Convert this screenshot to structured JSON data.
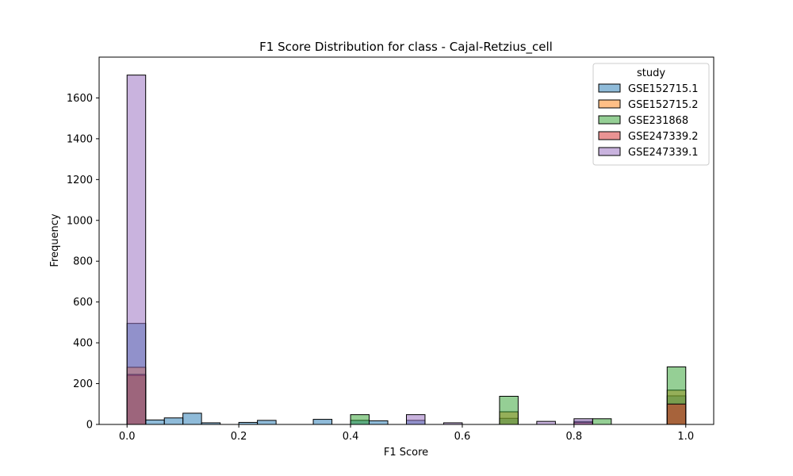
{
  "chart_data": {
    "type": "histogram",
    "title": "F1 Score Distribution for class - Cajal-Retzius_cell",
    "xlabel": "F1 Score",
    "ylabel": "Frequency",
    "xlim": [
      -0.05,
      1.05
    ],
    "ylim": [
      0,
      1800
    ],
    "x_ticks": [
      0.0,
      0.2,
      0.4,
      0.6,
      0.8,
      1.0
    ],
    "x_tick_labels": [
      "0.0",
      "0.2",
      "0.4",
      "0.6",
      "0.8",
      "1.0"
    ],
    "y_ticks": [
      0,
      200,
      400,
      600,
      800,
      1000,
      1200,
      1400,
      1600
    ],
    "y_tick_labels": [
      "0",
      "200",
      "400",
      "600",
      "800",
      "1000",
      "1200",
      "1400",
      "1600"
    ],
    "grid": false,
    "bins": 30,
    "bin_width": 0.0333,
    "legend": {
      "title": "study",
      "placement": "top-right"
    },
    "series": [
      {
        "name": "GSE152715.1",
        "color": "#1f77b4",
        "bins": [
          {
            "x0": 0.0,
            "x1": 0.0333,
            "count": 495
          },
          {
            "x0": 0.0333,
            "x1": 0.0667,
            "count": 22
          },
          {
            "x0": 0.0667,
            "x1": 0.1,
            "count": 32
          },
          {
            "x0": 0.1,
            "x1": 0.1333,
            "count": 55
          },
          {
            "x0": 0.1333,
            "x1": 0.1667,
            "count": 8
          },
          {
            "x0": 0.2,
            "x1": 0.2333,
            "count": 10
          },
          {
            "x0": 0.2333,
            "x1": 0.2667,
            "count": 20
          },
          {
            "x0": 0.3333,
            "x1": 0.3667,
            "count": 25
          },
          {
            "x0": 0.4,
            "x1": 0.4333,
            "count": 20
          },
          {
            "x0": 0.4333,
            "x1": 0.4667,
            "count": 18
          },
          {
            "x0": 0.5,
            "x1": 0.5333,
            "count": 20
          },
          {
            "x0": 0.6667,
            "x1": 0.7,
            "count": 30
          },
          {
            "x0": 0.8,
            "x1": 0.8333,
            "count": 15
          },
          {
            "x0": 0.9667,
            "x1": 1.0,
            "count": 140
          }
        ]
      },
      {
        "name": "GSE152715.2",
        "color": "#ff7f0e",
        "bins": [
          {
            "x0": 0.0,
            "x1": 0.0333,
            "count": 280
          },
          {
            "x0": 0.6667,
            "x1": 0.7,
            "count": 62
          },
          {
            "x0": 0.9667,
            "x1": 1.0,
            "count": 168
          }
        ]
      },
      {
        "name": "GSE231868",
        "color": "#2ca02c",
        "bins": [
          {
            "x0": 0.0,
            "x1": 0.0333,
            "count": 240
          },
          {
            "x0": 0.4,
            "x1": 0.4333,
            "count": 48
          },
          {
            "x0": 0.6667,
            "x1": 0.7,
            "count": 138
          },
          {
            "x0": 0.8333,
            "x1": 0.8667,
            "count": 28
          },
          {
            "x0": 0.9667,
            "x1": 1.0,
            "count": 282
          }
        ]
      },
      {
        "name": "GSE247339.2",
        "color": "#d62728",
        "bins": [
          {
            "x0": 0.0,
            "x1": 0.0333,
            "count": 245
          },
          {
            "x0": 0.8,
            "x1": 0.8333,
            "count": 10
          },
          {
            "x0": 0.9667,
            "x1": 1.0,
            "count": 100
          }
        ]
      },
      {
        "name": "GSE247339.1",
        "color": "#9467bd",
        "bins": [
          {
            "x0": 0.0,
            "x1": 0.0333,
            "count": 1712
          },
          {
            "x0": 0.5,
            "x1": 0.5333,
            "count": 48
          },
          {
            "x0": 0.5667,
            "x1": 0.6,
            "count": 8
          },
          {
            "x0": 0.7333,
            "x1": 0.7667,
            "count": 15
          },
          {
            "x0": 0.8,
            "x1": 0.8333,
            "count": 28
          }
        ]
      }
    ]
  }
}
